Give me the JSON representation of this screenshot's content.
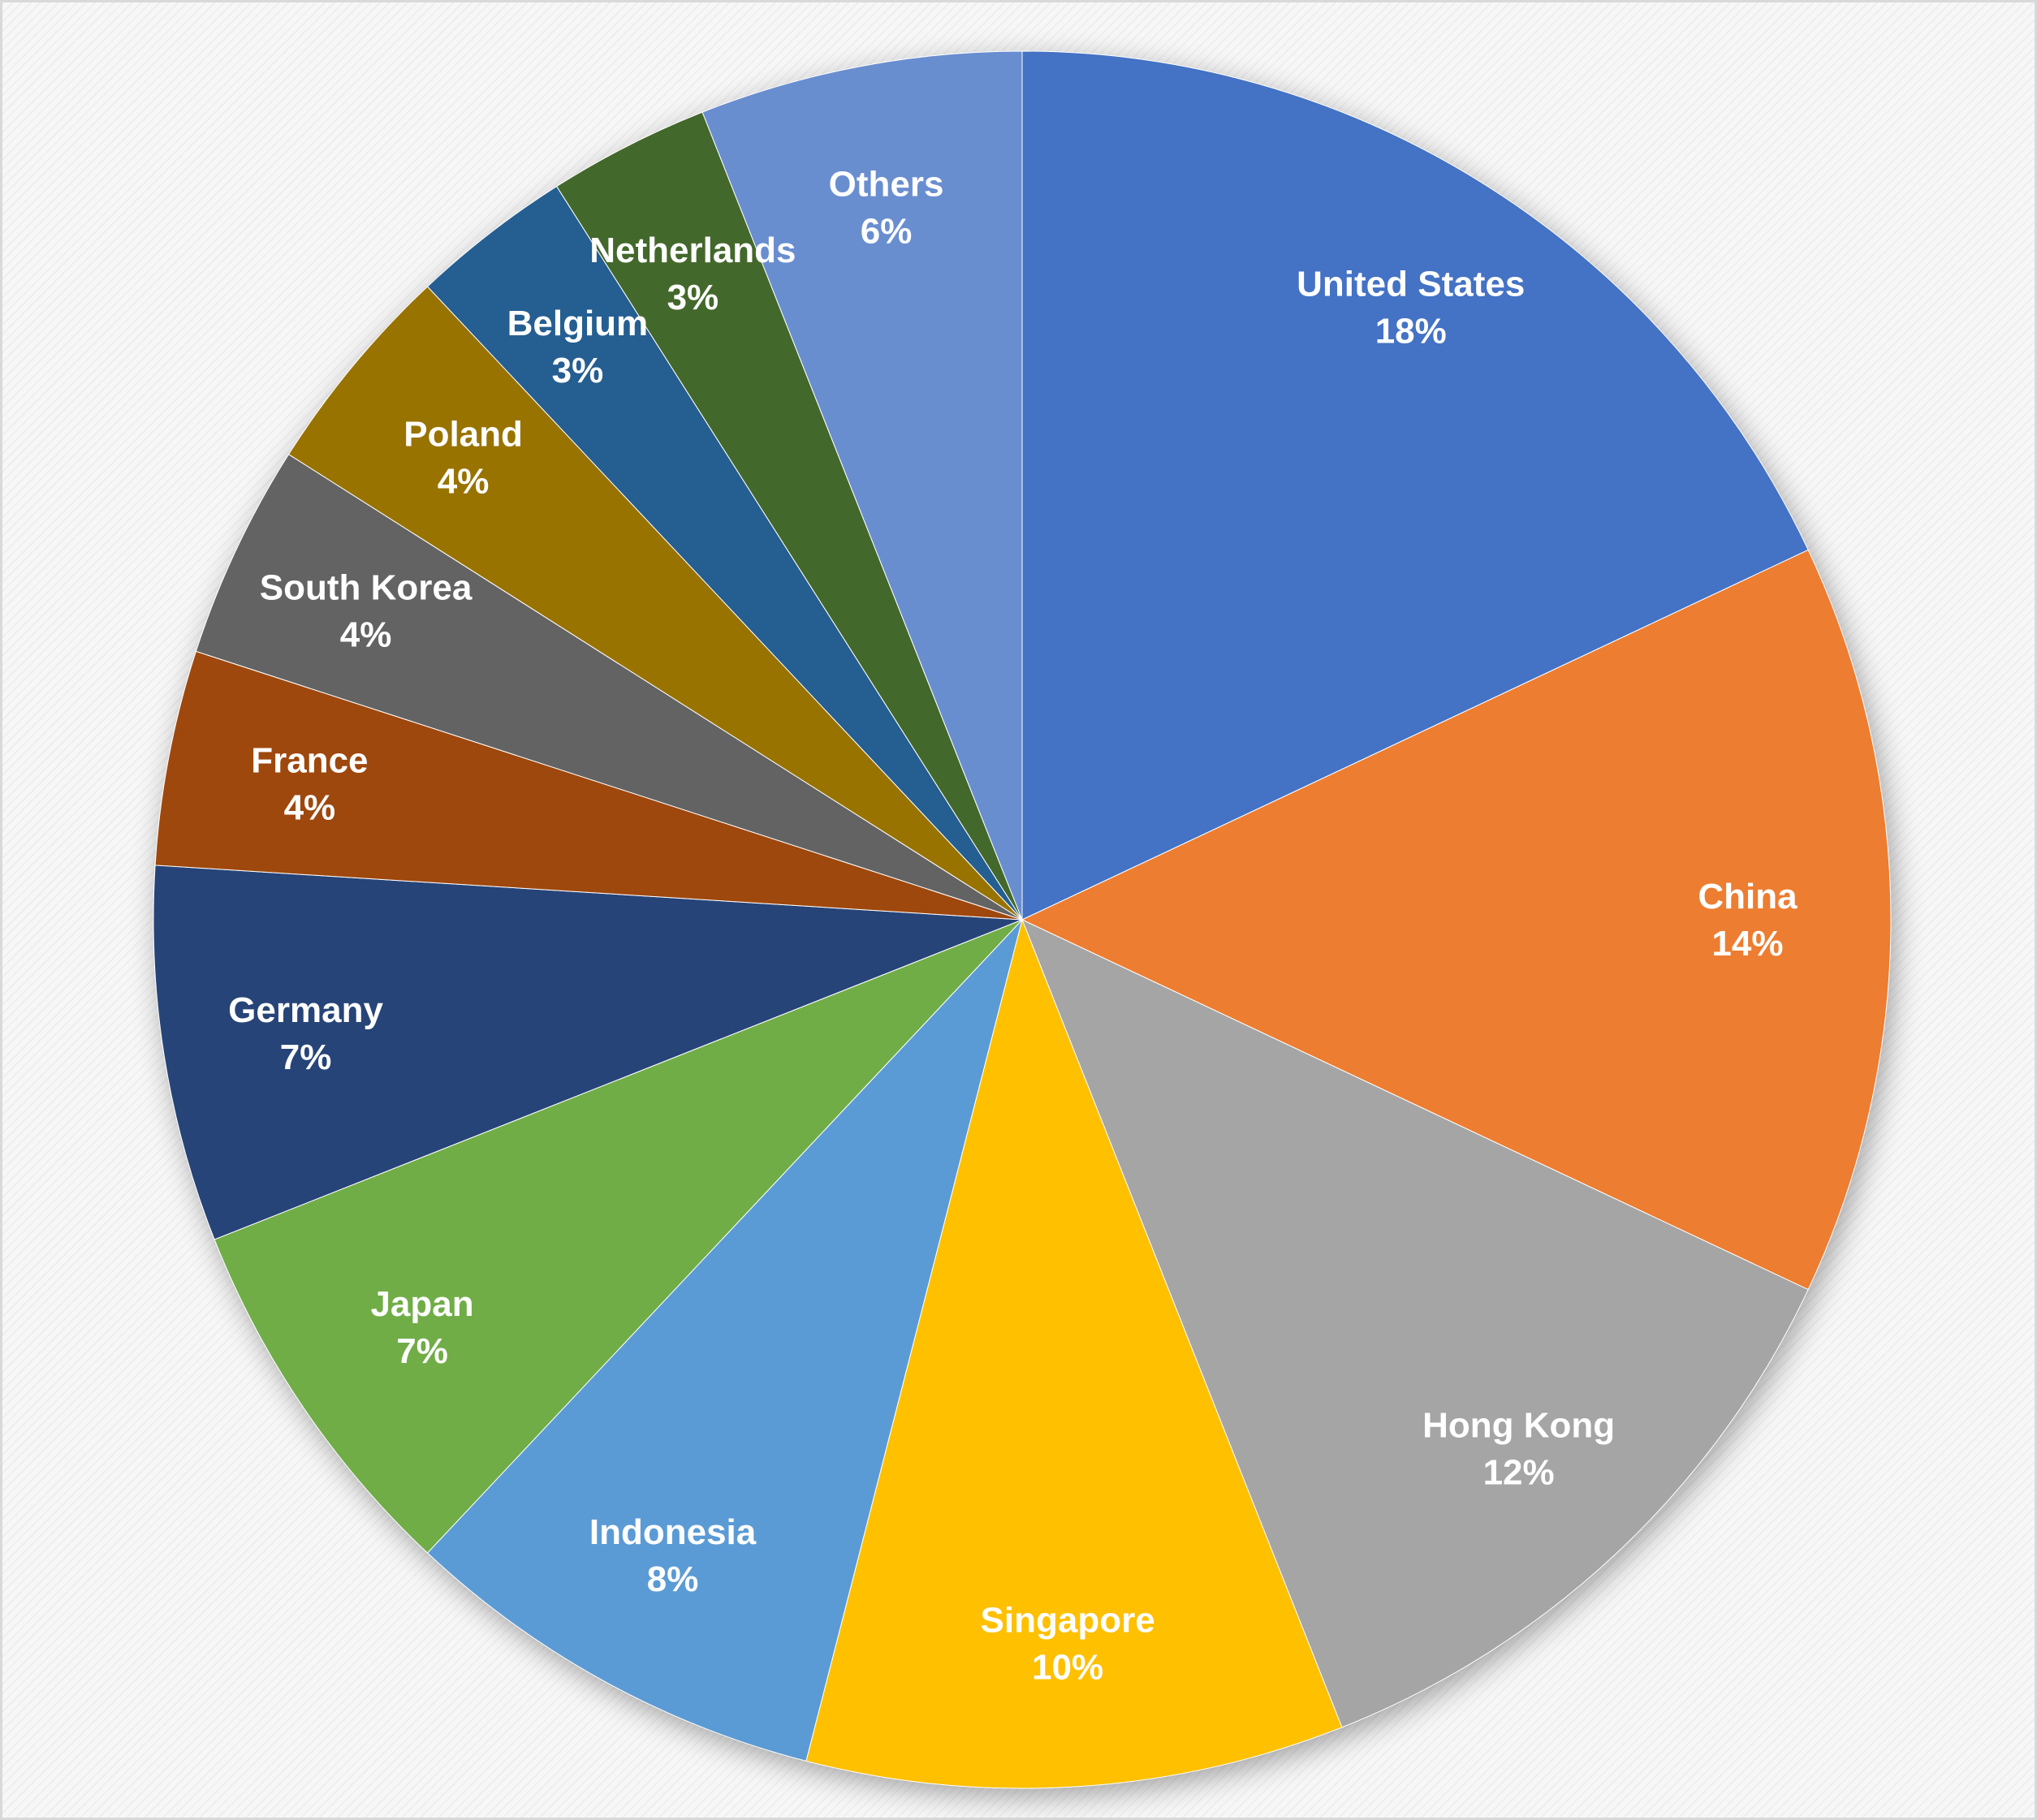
{
  "chart_data": {
    "type": "pie",
    "title": "",
    "start_angle_deg": 0,
    "direction": "clockwise",
    "data_labels": "category and percentage, inside slices",
    "legend": "none",
    "slices": [
      {
        "name": "United States",
        "value": 18,
        "label": "18%",
        "color": "#4472C4"
      },
      {
        "name": "China",
        "value": 14,
        "label": "14%",
        "color": "#ED7D31"
      },
      {
        "name": "Hong Kong",
        "value": 12,
        "label": "12%",
        "color": "#A5A5A5"
      },
      {
        "name": "Singapore",
        "value": 10,
        "label": "10%",
        "color": "#FFC000"
      },
      {
        "name": "Indonesia",
        "value": 8,
        "label": "8%",
        "color": "#5B9BD5"
      },
      {
        "name": "Japan",
        "value": 7,
        "label": "7%",
        "color": "#70AD47"
      },
      {
        "name": "Germany",
        "value": 7,
        "label": "7%",
        "color": "#264478"
      },
      {
        "name": "France",
        "value": 4,
        "label": "4%",
        "color": "#9E480E"
      },
      {
        "name": "South Korea",
        "value": 4,
        "label": "4%",
        "color": "#636363"
      },
      {
        "name": "Poland",
        "value": 4,
        "label": "4%",
        "color": "#997300"
      },
      {
        "name": "Belgium",
        "value": 3,
        "label": "3%",
        "color": "#255E91"
      },
      {
        "name": "Netherlands",
        "value": 3,
        "label": "3%",
        "color": "#43682B"
      },
      {
        "name": "Others",
        "value": 6,
        "label": "6%",
        "color": "#698ED0"
      }
    ]
  }
}
